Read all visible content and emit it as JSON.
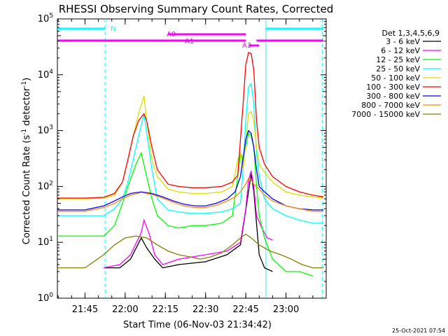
{
  "chart_data": {
    "type": "line",
    "title": "RHESSI Observing Summary Count Rates, Corrected",
    "xlabel": "Start Time (06-Nov-03 21:34:42)",
    "ylabel": "Corrected Count Rate (s⁻¹ detector⁻¹)",
    "ylabel_main": "Corrected Count Rate (s",
    "ylabel_sup1": "-1",
    "ylabel_mid": " detector",
    "ylabel_sup2": "-1",
    "ylabel_end": ")",
    "y_scale": "log",
    "ylim": [
      1,
      100000
    ],
    "xlim": [
      "21:34:42",
      "23:15:00"
    ],
    "x_ticks": [
      "21:45",
      "22:00",
      "22:15",
      "22:30",
      "22:45",
      "23:00"
    ],
    "y_ticks": [
      {
        "base": "10",
        "exp": "0",
        "value": 1
      },
      {
        "base": "10",
        "exp": "1",
        "value": 10
      },
      {
        "base": "10",
        "exp": "2",
        "value": 100
      },
      {
        "base": "10",
        "exp": "3",
        "value": 1000
      },
      {
        "base": "10",
        "exp": "4",
        "value": 10000
      },
      {
        "base": "10",
        "exp": "5",
        "value": 100000
      }
    ],
    "legend_title": "Det 1,3,4,5,6,9",
    "legend_placement": "right",
    "series": [
      {
        "name": "3 - 6 keV",
        "color": "#000000",
        "points": [
          [
            "21:52",
            3.5
          ],
          [
            "21:58",
            3.5
          ],
          [
            "22:02",
            5
          ],
          [
            "22:06",
            12
          ],
          [
            "22:08",
            8
          ],
          [
            "22:11",
            5
          ],
          [
            "22:14",
            3.5
          ],
          [
            "22:20",
            4
          ],
          [
            "22:30",
            4.5
          ],
          [
            "22:38",
            6
          ],
          [
            "22:43",
            9
          ],
          [
            "22:46",
            80
          ],
          [
            "22:47",
            170
          ],
          [
            "22:48",
            80
          ],
          [
            "22:50",
            6
          ],
          [
            "22:52",
            3.5
          ],
          [
            "22:55",
            3
          ]
        ]
      },
      {
        "name": "6 - 12 keV",
        "color": "#ff00ff",
        "points": [
          [
            "21:52",
            3.5
          ],
          [
            "21:58",
            4
          ],
          [
            "22:02",
            6
          ],
          [
            "22:06",
            15
          ],
          [
            "22:07",
            25
          ],
          [
            "22:09",
            14
          ],
          [
            "22:11",
            6
          ],
          [
            "22:14",
            4
          ],
          [
            "22:20",
            5
          ],
          [
            "22:30",
            6
          ],
          [
            "22:38",
            7
          ],
          [
            "22:43",
            10
          ],
          [
            "22:45",
            40
          ],
          [
            "22:46",
            130
          ],
          [
            "22:47",
            190
          ],
          [
            "22:48",
            100
          ],
          [
            "22:49",
            30
          ],
          [
            "22:51",
            18
          ],
          [
            "22:53",
            12
          ],
          [
            "22:55",
            11
          ]
        ]
      },
      {
        "name": "12 - 25 keV",
        "color": "#00ff00",
        "points": [
          [
            "21:34:42",
            13
          ],
          [
            "21:45",
            13
          ],
          [
            "21:52",
            13
          ],
          [
            "21:56",
            20
          ],
          [
            "21:59",
            50
          ],
          [
            "22:01",
            100
          ],
          [
            "22:04",
            250
          ],
          [
            "22:06",
            400
          ],
          [
            "22:08",
            150
          ],
          [
            "22:10",
            60
          ],
          [
            "22:12",
            30
          ],
          [
            "22:16",
            20
          ],
          [
            "22:20",
            18
          ],
          [
            "22:25",
            20
          ],
          [
            "22:30",
            20
          ],
          [
            "22:36",
            22
          ],
          [
            "22:40",
            30
          ],
          [
            "22:42",
            150
          ],
          [
            "22:43",
            400
          ],
          [
            "22:44",
            300
          ],
          [
            "22:45",
            500
          ],
          [
            "22:46",
            900
          ],
          [
            "22:47",
            800
          ],
          [
            "22:48",
            500
          ],
          [
            "22:49",
            100
          ],
          [
            "22:50",
            30
          ],
          [
            "22:52",
            12
          ],
          [
            "22:55",
            5
          ],
          [
            "23:00",
            3
          ],
          [
            "23:05",
            3
          ],
          [
            "23:10",
            2.5
          ]
        ]
      },
      {
        "name": "25 - 50 keV",
        "color": "#00ffff",
        "points": [
          [
            "21:34:42",
            30
          ],
          [
            "21:45",
            30
          ],
          [
            "21:52",
            30
          ],
          [
            "21:56",
            40
          ],
          [
            "21:59",
            60
          ],
          [
            "22:01",
            120
          ],
          [
            "22:03",
            300
          ],
          [
            "22:05",
            800
          ],
          [
            "22:07",
            2000
          ],
          [
            "22:08",
            900
          ],
          [
            "22:10",
            200
          ],
          [
            "22:12",
            60
          ],
          [
            "22:16",
            38
          ],
          [
            "22:20",
            35
          ],
          [
            "22:25",
            33
          ],
          [
            "22:30",
            33
          ],
          [
            "22:36",
            35
          ],
          [
            "22:40",
            40
          ],
          [
            "22:43",
            50
          ],
          [
            "22:44",
            200
          ],
          [
            "22:45",
            1500
          ],
          [
            "22:46",
            6000
          ],
          [
            "22:47",
            7000
          ],
          [
            "22:48",
            3000
          ],
          [
            "22:49",
            400
          ],
          [
            "22:50",
            150
          ],
          [
            "22:52",
            60
          ],
          [
            "22:55",
            40
          ],
          [
            "23:00",
            30
          ],
          [
            "23:05",
            25
          ],
          [
            "23:10",
            22
          ],
          [
            "23:14",
            22
          ]
        ]
      },
      {
        "name": "50 - 100 keV",
        "color": "#dddd00",
        "points": [
          [
            "21:34:42",
            60
          ],
          [
            "21:45",
            60
          ],
          [
            "21:52",
            62
          ],
          [
            "21:56",
            70
          ],
          [
            "21:59",
            120
          ],
          [
            "22:01",
            300
          ],
          [
            "22:03",
            800
          ],
          [
            "22:05",
            2000
          ],
          [
            "22:07",
            4200
          ],
          [
            "22:08",
            1500
          ],
          [
            "22:10",
            300
          ],
          [
            "22:12",
            150
          ],
          [
            "22:16",
            90
          ],
          [
            "22:20",
            80
          ],
          [
            "22:25",
            75
          ],
          [
            "22:30",
            75
          ],
          [
            "22:36",
            80
          ],
          [
            "22:40",
            100
          ],
          [
            "22:42",
            300
          ],
          [
            "22:43",
            400
          ],
          [
            "22:44",
            200
          ],
          [
            "22:45",
            600
          ],
          [
            "22:46",
            2000
          ],
          [
            "22:47",
            2200
          ],
          [
            "22:48",
            1500
          ],
          [
            "22:49",
            500
          ],
          [
            "22:50",
            250
          ],
          [
            "22:52",
            180
          ],
          [
            "22:55",
            120
          ],
          [
            "23:00",
            80
          ],
          [
            "23:05",
            70
          ],
          [
            "23:10",
            65
          ],
          [
            "23:14",
            62
          ]
        ]
      },
      {
        "name": "100 - 300 keV",
        "color": "#ff0000",
        "points": [
          [
            "21:34:42",
            62
          ],
          [
            "21:45",
            62
          ],
          [
            "21:52",
            64
          ],
          [
            "21:56",
            75
          ],
          [
            "21:59",
            120
          ],
          [
            "22:01",
            300
          ],
          [
            "22:03",
            800
          ],
          [
            "22:05",
            1500
          ],
          [
            "22:07",
            2000
          ],
          [
            "22:08",
            1500
          ],
          [
            "22:10",
            500
          ],
          [
            "22:12",
            200
          ],
          [
            "22:16",
            110
          ],
          [
            "22:20",
            100
          ],
          [
            "22:25",
            95
          ],
          [
            "22:30",
            95
          ],
          [
            "22:36",
            100
          ],
          [
            "22:40",
            120
          ],
          [
            "22:42",
            160
          ],
          [
            "22:44",
            3000
          ],
          [
            "22:45",
            15000
          ],
          [
            "22:46",
            25000
          ],
          [
            "22:47",
            24000
          ],
          [
            "22:48",
            12000
          ],
          [
            "22:49",
            1500
          ],
          [
            "22:50",
            500
          ],
          [
            "22:52",
            250
          ],
          [
            "22:55",
            150
          ],
          [
            "23:00",
            100
          ],
          [
            "23:05",
            80
          ],
          [
            "23:10",
            70
          ],
          [
            "23:14",
            65
          ]
        ]
      },
      {
        "name": "300 - 800 keV",
        "color": "#0000ff",
        "points": [
          [
            "21:34:42",
            38
          ],
          [
            "21:45",
            38
          ],
          [
            "21:52",
            45
          ],
          [
            "21:56",
            55
          ],
          [
            "21:59",
            65
          ],
          [
            "22:02",
            75
          ],
          [
            "22:06",
            80
          ],
          [
            "22:10",
            75
          ],
          [
            "22:14",
            65
          ],
          [
            "22:18",
            55
          ],
          [
            "22:22",
            48
          ],
          [
            "22:26",
            45
          ],
          [
            "22:30",
            45
          ],
          [
            "22:34",
            50
          ],
          [
            "22:38",
            60
          ],
          [
            "22:41",
            80
          ],
          [
            "22:43",
            150
          ],
          [
            "22:45",
            700
          ],
          [
            "22:46",
            1000
          ],
          [
            "22:47",
            900
          ],
          [
            "22:48",
            500
          ],
          [
            "22:49",
            200
          ],
          [
            "22:50",
            100
          ],
          [
            "22:52",
            80
          ],
          [
            "22:55",
            60
          ],
          [
            "23:00",
            45
          ],
          [
            "23:05",
            40
          ],
          [
            "23:10",
            38
          ],
          [
            "23:14",
            38
          ]
        ]
      },
      {
        "name": "800 - 7000 keV",
        "color": "#ff8800",
        "points": [
          [
            "21:34:42",
            36
          ],
          [
            "21:45",
            36
          ],
          [
            "21:52",
            42
          ],
          [
            "21:56",
            50
          ],
          [
            "21:59",
            60
          ],
          [
            "22:02",
            70
          ],
          [
            "22:06",
            78
          ],
          [
            "22:10",
            72
          ],
          [
            "22:14",
            62
          ],
          [
            "22:18",
            52
          ],
          [
            "22:22",
            45
          ],
          [
            "22:26",
            42
          ],
          [
            "22:30",
            42
          ],
          [
            "22:34",
            46
          ],
          [
            "22:38",
            55
          ],
          [
            "22:41",
            65
          ],
          [
            "22:43",
            80
          ],
          [
            "22:45",
            110
          ],
          [
            "22:46",
            140
          ],
          [
            "22:47",
            130
          ],
          [
            "22:48",
            110
          ],
          [
            "22:50",
            90
          ],
          [
            "22:52",
            70
          ],
          [
            "22:55",
            55
          ],
          [
            "23:00",
            45
          ],
          [
            "23:05",
            40
          ],
          [
            "23:10",
            36
          ],
          [
            "23:14",
            36
          ]
        ]
      },
      {
        "name": "7000 - 15000 keV",
        "color": "#808000",
        "points": [
          [
            "21:34:42",
            3.5
          ],
          [
            "21:45",
            3.5
          ],
          [
            "21:52",
            6
          ],
          [
            "21:56",
            9
          ],
          [
            "22:00",
            12
          ],
          [
            "22:04",
            13
          ],
          [
            "22:08",
            12
          ],
          [
            "22:12",
            9
          ],
          [
            "22:16",
            7
          ],
          [
            "22:20",
            6
          ],
          [
            "22:24",
            5.5
          ],
          [
            "22:28",
            5
          ],
          [
            "22:32",
            5.5
          ],
          [
            "22:36",
            6.5
          ],
          [
            "22:40",
            9
          ],
          [
            "22:43",
            12
          ],
          [
            "22:45",
            14
          ],
          [
            "22:47",
            12
          ],
          [
            "22:50",
            9
          ],
          [
            "22:54",
            7
          ],
          [
            "22:58",
            6
          ],
          [
            "23:02",
            5
          ],
          [
            "23:06",
            4
          ],
          [
            "23:10",
            3.5
          ],
          [
            "23:14",
            3.5
          ]
        ]
      }
    ],
    "state_bars": [
      {
        "label": "N",
        "color": "#00ffff",
        "segments": [
          [
            "21:34:42",
            "21:52:30"
          ],
          [
            "22:52:30",
            "23:14"
          ]
        ]
      },
      {
        "label": "A0",
        "color": "#ff00ff",
        "segments": [
          [
            "22:16",
            "22:45"
          ]
        ]
      },
      {
        "label": "A1",
        "color": "#ff00ff",
        "segments": [
          [
            "21:34:42",
            "22:45"
          ],
          [
            "22:49",
            "23:14"
          ]
        ]
      },
      {
        "label": "A3",
        "color": "#ff00ff",
        "segments": [
          [
            "22:46",
            "22:50"
          ]
        ]
      }
    ],
    "vertical_markers": [
      {
        "time": "21:52:30",
        "color": "#00ffff",
        "style": "dashed"
      },
      {
        "time": "22:52:30",
        "color": "#00ffff",
        "style": "solid"
      },
      {
        "time": "23:13:30",
        "color": "#00ffff",
        "style": "dashed"
      }
    ],
    "timestamp": "25-Oct-2021 07:54"
  }
}
